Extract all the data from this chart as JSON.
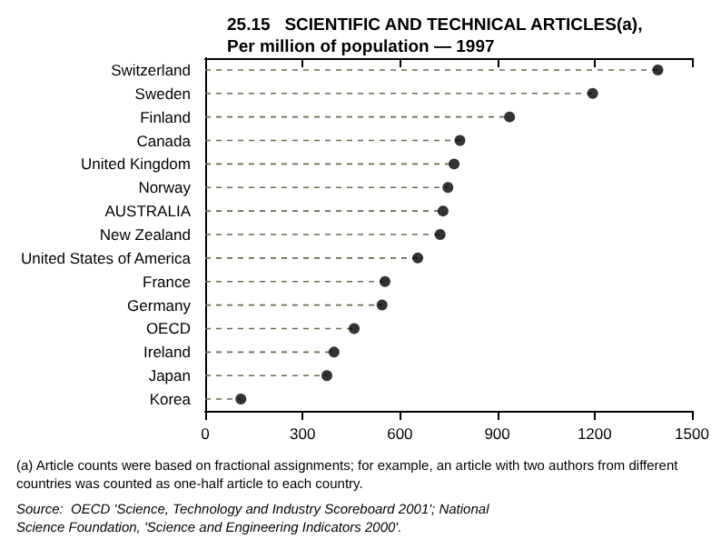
{
  "chart_data": {
    "type": "lollipop",
    "orientation": "horizontal",
    "title": "25.15   SCIENTIFIC AND TECHNICAL ARTICLES(a),\nPer million of population — 1997",
    "categories": [
      "Switzerland",
      "Sweden",
      "Finland",
      "Canada",
      "United Kingdom",
      "Norway",
      "AUSTRALIA",
      "New Zealand",
      "United States of America",
      "France",
      "Germany",
      "OECD",
      "Ireland",
      "Japan",
      "Korea"
    ],
    "values": [
      1395,
      1194,
      938,
      785,
      767,
      748,
      733,
      724,
      655,
      554,
      545,
      459,
      397,
      375,
      110
    ],
    "color": "#000000",
    "xlim": [
      0,
      1500
    ],
    "xticks": [
      0,
      300,
      600,
      900,
      1200,
      1500
    ],
    "marker": "circle",
    "line_style": "dashed",
    "grid": false,
    "legend": false,
    "annotations": [
      "(a) Article counts were based on fractional assignments; for example, an article with two authors from different countries was counted as one-half article to each country.",
      "Source:  OECD 'Science, Technology and Industry Scoreboard 2001'; National Science Foundation, 'Science and Engineering Indicators 2000'."
    ]
  }
}
